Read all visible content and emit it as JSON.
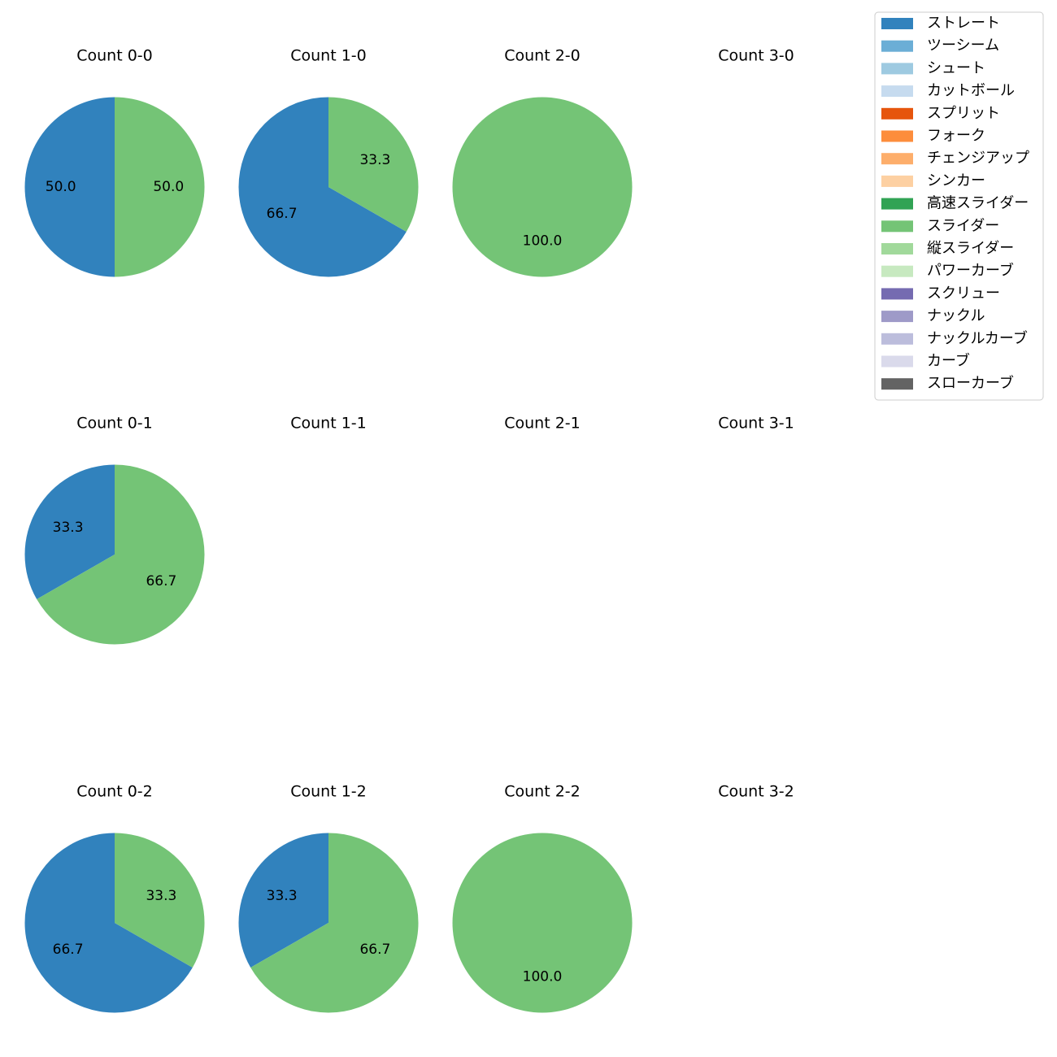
{
  "legend": [
    {
      "label": "ストレート",
      "color": "#3182bd"
    },
    {
      "label": "ツーシーム",
      "color": "#6baed6"
    },
    {
      "label": "シュート",
      "color": "#9ecae1"
    },
    {
      "label": "カットボール",
      "color": "#c6dbef"
    },
    {
      "label": "スプリット",
      "color": "#e6550d"
    },
    {
      "label": "フォーク",
      "color": "#fd8d3c"
    },
    {
      "label": "チェンジアップ",
      "color": "#fdae6b"
    },
    {
      "label": "シンカー",
      "color": "#fdd0a2"
    },
    {
      "label": "高速スライダー",
      "color": "#31a354"
    },
    {
      "label": "スライダー",
      "color": "#74c476"
    },
    {
      "label": "縦スライダー",
      "color": "#a1d99b"
    },
    {
      "label": "パワーカーブ",
      "color": "#c7e9c0"
    },
    {
      "label": "スクリュー",
      "color": "#756bb1"
    },
    {
      "label": "ナックル",
      "color": "#9e9ac8"
    },
    {
      "label": "ナックルカーブ",
      "color": "#bcbddc"
    },
    {
      "label": "カーブ",
      "color": "#dadaeb"
    },
    {
      "label": "スローカーブ",
      "color": "#636363"
    }
  ],
  "chart_data": [
    {
      "type": "pie",
      "title": "Count 0-0",
      "slices": [
        {
          "pitch": "ストレート",
          "value": 50.0
        },
        {
          "pitch": "スライダー",
          "value": 50.0
        }
      ]
    },
    {
      "type": "pie",
      "title": "Count 1-0",
      "slices": [
        {
          "pitch": "ストレート",
          "value": 66.7
        },
        {
          "pitch": "スライダー",
          "value": 33.3
        }
      ]
    },
    {
      "type": "pie",
      "title": "Count 2-0",
      "slices": [
        {
          "pitch": "スライダー",
          "value": 100.0
        }
      ]
    },
    {
      "type": "pie",
      "title": "Count 3-0",
      "slices": []
    },
    {
      "type": "pie",
      "title": "Count 0-1",
      "slices": [
        {
          "pitch": "ストレート",
          "value": 33.3
        },
        {
          "pitch": "スライダー",
          "value": 66.7
        }
      ]
    },
    {
      "type": "pie",
      "title": "Count 1-1",
      "slices": []
    },
    {
      "type": "pie",
      "title": "Count 2-1",
      "slices": []
    },
    {
      "type": "pie",
      "title": "Count 3-1",
      "slices": []
    },
    {
      "type": "pie",
      "title": "Count 0-2",
      "slices": [
        {
          "pitch": "ストレート",
          "value": 66.7
        },
        {
          "pitch": "スライダー",
          "value": 33.3
        }
      ]
    },
    {
      "type": "pie",
      "title": "Count 1-2",
      "slices": [
        {
          "pitch": "ストレート",
          "value": 33.3
        },
        {
          "pitch": "スライダー",
          "value": 66.7
        }
      ]
    },
    {
      "type": "pie",
      "title": "Count 2-2",
      "slices": [
        {
          "pitch": "スライダー",
          "value": 100.0
        }
      ]
    },
    {
      "type": "pie",
      "title": "Count 3-2",
      "slices": []
    }
  ]
}
